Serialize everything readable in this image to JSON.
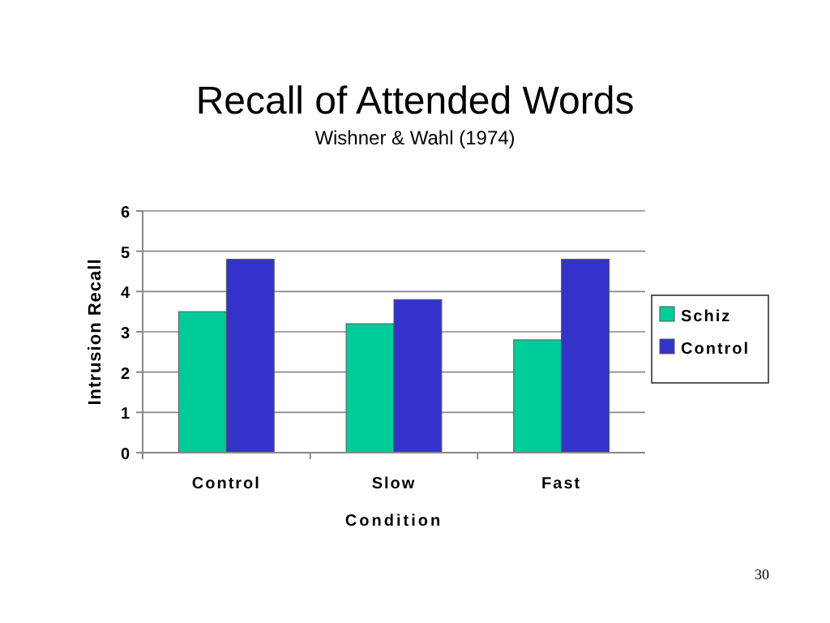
{
  "chart_data": {
    "type": "bar",
    "title": "Recall of Attended Words",
    "subtitle": "Wishner & Wahl (1974)",
    "xlabel": "Condition",
    "ylabel": "Intrusion Recall",
    "categories": [
      "Control",
      "Slow",
      "Fast"
    ],
    "series": [
      {
        "name": "Schiz",
        "color": "#00cc99",
        "values": [
          3.5,
          3.2,
          2.8
        ]
      },
      {
        "name": "Control",
        "color": "#3333cc",
        "values": [
          4.8,
          3.8,
          4.8
        ]
      }
    ],
    "ylim": [
      0,
      6
    ],
    "yticks": [
      0,
      1,
      2,
      3,
      4,
      5,
      6
    ],
    "grid": "y",
    "legend": "right",
    "annotations": [
      "30"
    ]
  }
}
